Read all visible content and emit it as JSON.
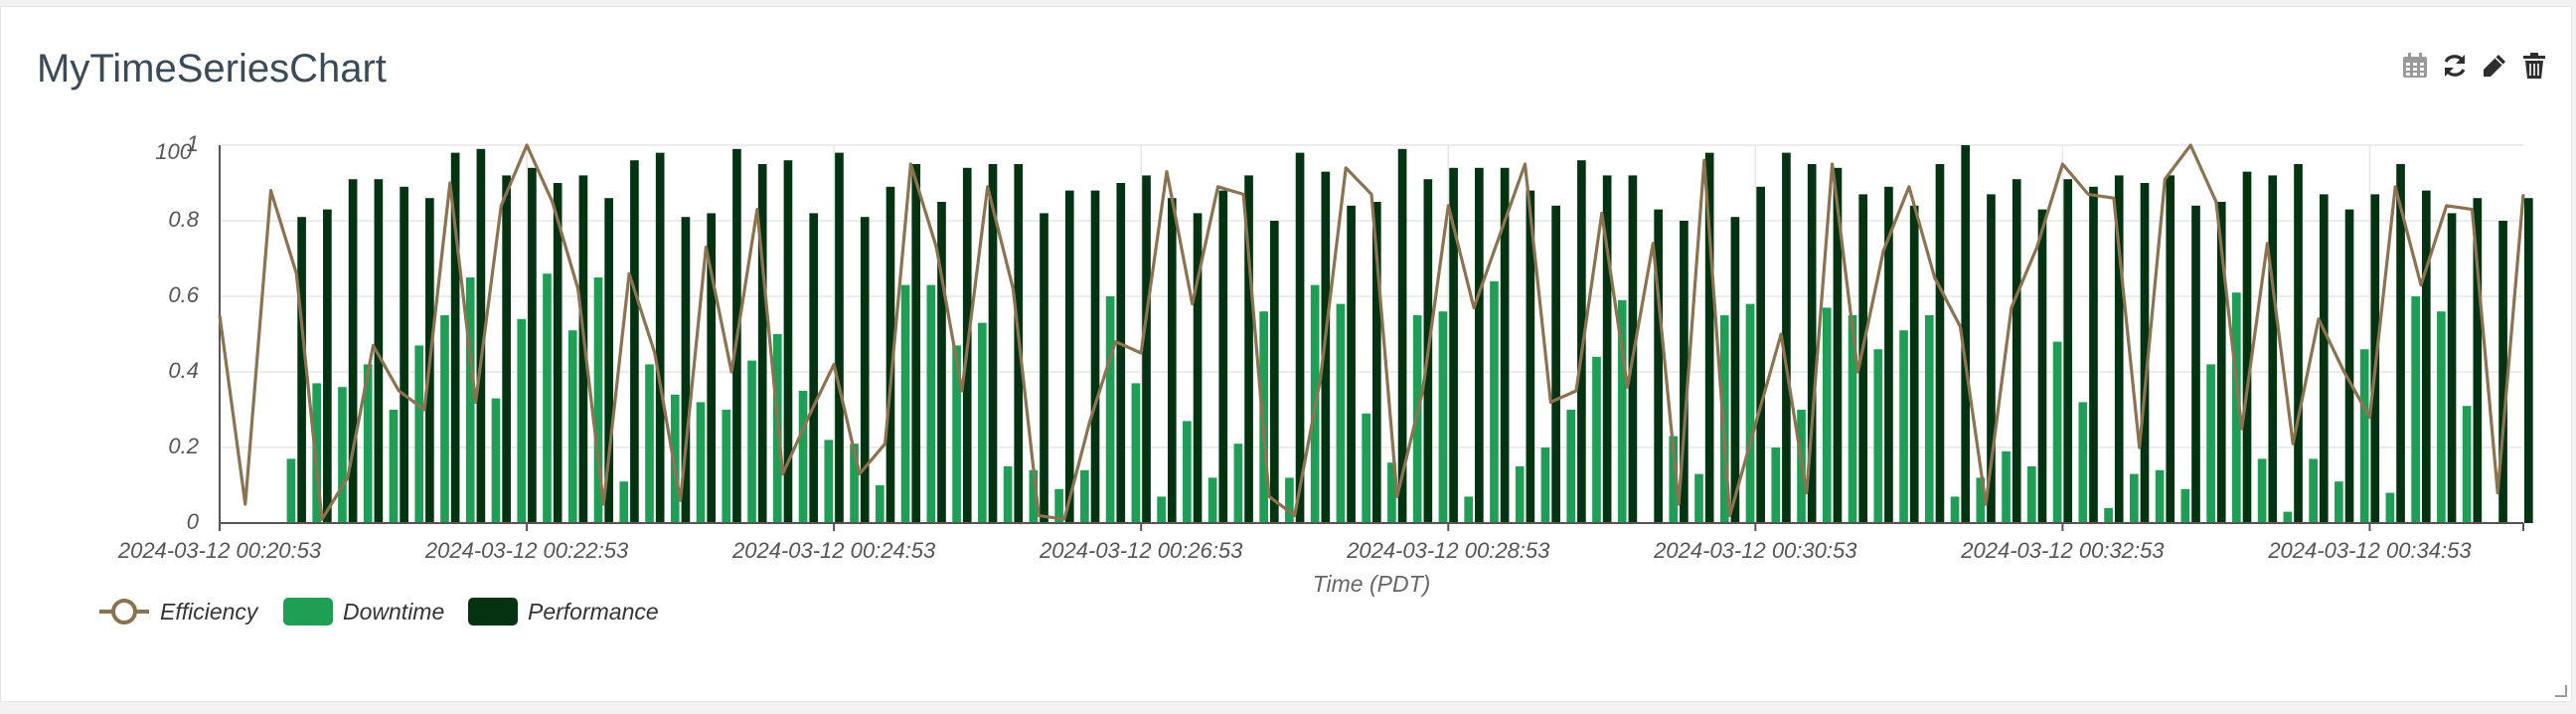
{
  "panel": {
    "title": "MyTimeSeriesChart",
    "tools": [
      {
        "name": "calendar-icon",
        "label": "calendar"
      },
      {
        "name": "refresh-icon",
        "label": "refresh"
      },
      {
        "name": "edit-icon",
        "label": "edit"
      },
      {
        "name": "delete-icon",
        "label": "delete"
      }
    ]
  },
  "colors": {
    "efficiency": "#8b7352",
    "downtime": "#1f9e55",
    "performance": "#033311",
    "axis": "#555555",
    "grid": "#e6e6e6"
  },
  "chart_data": {
    "type": "bar",
    "title": "",
    "xlabel": "Time (PDT)",
    "ylabel": "",
    "ylim": [
      0,
      1
    ],
    "yticks": [
      "0",
      "0.2",
      "0.4",
      "0.6",
      "0.8",
      "1"
    ],
    "y_top_label": "100",
    "grid": true,
    "legend_position": "bottom-left",
    "x_tick_labels": [
      "2024-03-12 00:20:53",
      "2024-03-12 00:22:53",
      "2024-03-12 00:24:53",
      "2024-03-12 00:26:53",
      "2024-03-12 00:28:53",
      "2024-03-12 00:30:53",
      "2024-03-12 00:32:53",
      "2024-03-12 00:34:53"
    ],
    "x_start": "2024-03-12 00:20:53",
    "x_end": "2024-03-12 00:35:53",
    "sample_interval_seconds": 10,
    "series": [
      {
        "name": "Efficiency",
        "type": "line",
        "values": [
          0.55,
          0.05,
          0.88,
          0.66,
          0.01,
          0.12,
          0.47,
          0.35,
          0.3,
          0.9,
          0.32,
          0.84,
          1.0,
          0.85,
          0.62,
          0.05,
          0.66,
          0.45,
          0.06,
          0.73,
          0.4,
          0.83,
          0.13,
          0.28,
          0.42,
          0.13,
          0.21,
          0.95,
          0.73,
          0.35,
          0.89,
          0.62,
          0.02,
          0.01,
          0.27,
          0.48,
          0.45,
          0.93,
          0.58,
          0.89,
          0.87,
          0.07,
          0.02,
          0.38,
          0.94,
          0.87,
          0.07,
          0.35,
          0.84,
          0.57,
          0.76,
          0.95,
          0.32,
          0.35,
          0.82,
          0.36,
          0.74,
          0.05,
          0.96,
          0.02,
          0.26,
          0.5,
          0.08,
          0.95,
          0.4,
          0.72,
          0.89,
          0.65,
          0.52,
          0.05,
          0.57,
          0.73,
          0.95,
          0.87,
          0.86,
          0.2,
          0.91,
          1.0,
          0.85,
          0.25,
          0.74,
          0.21,
          0.54,
          0.4,
          0.28,
          0.89,
          0.63,
          0.84,
          0.83,
          0.08,
          0.87
        ]
      },
      {
        "name": "Downtime",
        "type": "bar",
        "values": [
          0.0,
          0.0,
          0.0,
          0.17,
          0.37,
          0.36,
          0.42,
          0.3,
          0.47,
          0.55,
          0.65,
          0.33,
          0.54,
          0.66,
          0.51,
          0.65,
          0.11,
          0.42,
          0.34,
          0.32,
          0.3,
          0.43,
          0.5,
          0.35,
          0.22,
          0.21,
          0.1,
          0.63,
          0.63,
          0.47,
          0.53,
          0.15,
          0.14,
          0.09,
          0.14,
          0.6,
          0.37,
          0.07,
          0.27,
          0.12,
          0.21,
          0.56,
          0.12,
          0.63,
          0.58,
          0.29,
          0.16,
          0.55,
          0.56,
          0.07,
          0.64,
          0.15,
          0.2,
          0.3,
          0.44,
          0.59,
          0.0,
          0.23,
          0.13,
          0.55,
          0.58,
          0.2,
          0.3,
          0.57,
          0.55,
          0.46,
          0.51,
          0.55,
          0.07,
          0.12,
          0.19,
          0.15,
          0.48,
          0.32,
          0.04,
          0.13,
          0.14,
          0.09,
          0.42,
          0.61,
          0.17,
          0.03,
          0.17,
          0.11,
          0.46,
          0.08,
          0.6,
          0.56,
          0.31,
          0.0,
          0.0
        ]
      },
      {
        "name": "Performance",
        "type": "bar",
        "values": [
          0.0,
          0.0,
          0.0,
          0.81,
          0.83,
          0.91,
          0.91,
          0.89,
          0.86,
          0.98,
          0.99,
          0.92,
          0.94,
          0.9,
          0.92,
          0.86,
          0.96,
          0.98,
          0.81,
          0.82,
          0.99,
          0.95,
          0.96,
          0.82,
          0.98,
          0.81,
          0.89,
          0.95,
          0.85,
          0.94,
          0.95,
          0.95,
          0.82,
          0.88,
          0.88,
          0.9,
          0.92,
          0.86,
          0.82,
          0.88,
          0.92,
          0.8,
          0.98,
          0.93,
          0.84,
          0.85,
          0.99,
          0.91,
          0.94,
          0.94,
          0.94,
          0.88,
          0.84,
          0.96,
          0.92,
          0.92,
          0.83,
          0.8,
          0.98,
          0.81,
          0.89,
          0.98,
          0.95,
          0.94,
          0.87,
          0.89,
          0.84,
          0.95,
          1.0,
          0.87,
          0.91,
          0.83,
          0.91,
          0.89,
          0.92,
          0.9,
          0.92,
          0.84,
          0.85,
          0.93,
          0.92,
          0.95,
          0.87,
          0.83,
          0.87,
          0.95,
          0.88,
          0.82,
          0.86,
          0.8,
          0.86
        ]
      }
    ]
  }
}
